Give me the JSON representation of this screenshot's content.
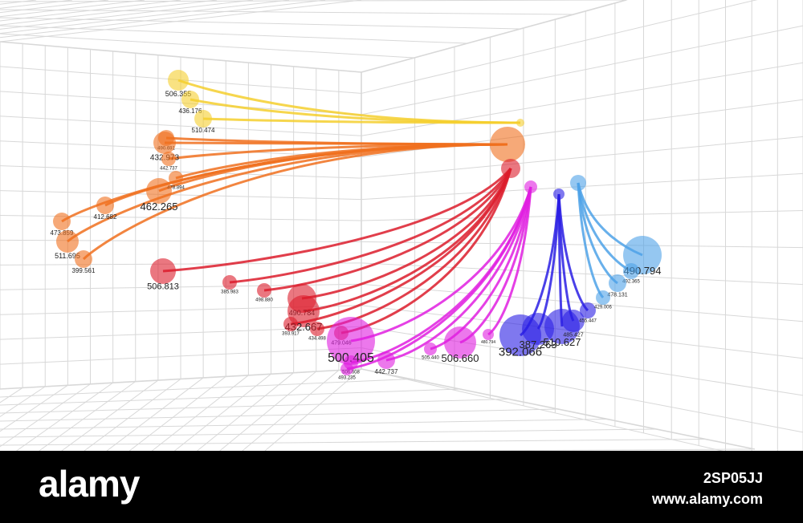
{
  "groups": [
    {
      "labels": [
        "506.355",
        "436.176",
        "510.474"
      ]
    },
    {
      "labels": [
        "490.691",
        "432.973",
        "442.737",
        "478.894",
        "462.265",
        "412.682",
        "473.859",
        "511.695",
        "399.561"
      ]
    },
    {
      "labels": [
        "506.813",
        "385.983",
        "498.880",
        "490.784",
        "432.667",
        "393.917",
        "434.498",
        "479.046"
      ]
    },
    {
      "labels": [
        "500.405",
        "506.608",
        "493.235",
        "442.737",
        "505.440",
        "506.660",
        "480.794"
      ]
    },
    {
      "labels": [
        "392.066",
        "387.263",
        "510.627",
        "485.427",
        "455.447"
      ]
    },
    {
      "labels": [
        "490.794",
        "492.365",
        "478.131",
        "429.006"
      ]
    }
  ],
  "watermark": {
    "brand": "alamy",
    "image_id": "2SP05JJ",
    "url": "www.alamy.com"
  }
}
